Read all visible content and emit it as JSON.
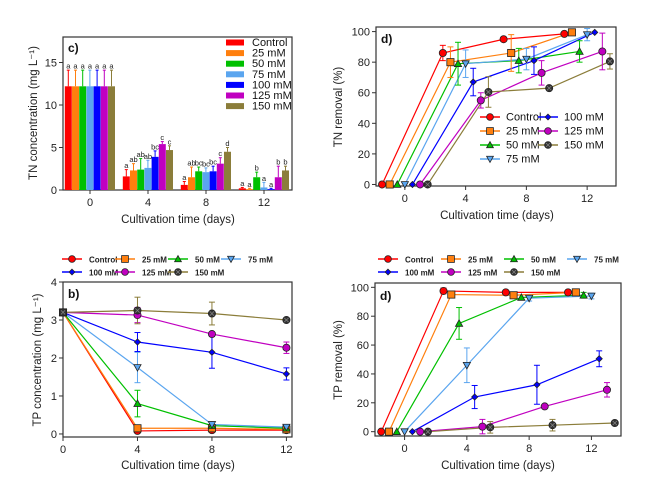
{
  "series_names": [
    "Control",
    "25 mM",
    "50 mM",
    "75 mM",
    "100 mM",
    "125 mM",
    "150 mM"
  ],
  "colors": [
    "#ff0000",
    "#ff7f0e",
    "#00c000",
    "#5aa5ef",
    "#0000ff",
    "#c000c0",
    "#8b7d3a"
  ],
  "markers": [
    "circle",
    "square",
    "triangle-up",
    "triangle-down",
    "diamond",
    "circle",
    "circle-cross"
  ],
  "chart_data": [
    {
      "id": "tn-concentration",
      "type": "bar",
      "panel_label": "c)",
      "title": "",
      "xlabel": "Cultivation time (days)",
      "ylabel": "TN concentration (mg L⁻¹)",
      "ylim": [
        0,
        18
      ],
      "yticks": [
        0,
        5,
        10,
        15
      ],
      "categories": [
        "0",
        "4",
        "8",
        "12"
      ],
      "legend": "top-right",
      "series": [
        {
          "name": "Control",
          "values": [
            12.2,
            1.6,
            0.6,
            0.2
          ],
          "errors": [
            1.9,
            0.8,
            0.4,
            0.1
          ],
          "labels": [
            "a",
            "a",
            "a",
            "a"
          ]
        },
        {
          "name": "25 mM",
          "values": [
            12.2,
            2.3,
            1.5,
            0.1
          ],
          "errors": [
            1.9,
            0.8,
            1.2,
            0.1
          ],
          "labels": [
            "a",
            "ab",
            "ab",
            "a"
          ]
        },
        {
          "name": "50 mM",
          "values": [
            12.2,
            2.4,
            2.2,
            1.5
          ],
          "errors": [
            1.9,
            1.3,
            0.5,
            0.6
          ],
          "labels": [
            "a",
            "ab",
            "bc",
            "b"
          ]
        },
        {
          "name": "75 mM",
          "values": [
            12.2,
            2.6,
            2.1,
            0.3
          ],
          "errors": [
            1.9,
            0.9,
            0.5,
            0.6
          ],
          "labels": [
            "a",
            "ab",
            "bc",
            "a"
          ]
        },
        {
          "name": "100 mM",
          "values": [
            12.2,
            3.9,
            2.2,
            0.1
          ],
          "errors": [
            1.9,
            0.7,
            0.6,
            0.1
          ],
          "labels": [
            "a",
            "bc",
            "bc",
            "a"
          ]
        },
        {
          "name": "125 mM",
          "values": [
            12.2,
            5.4,
            3.1,
            1.5
          ],
          "errors": [
            1.9,
            0.3,
            0.7,
            1.3
          ],
          "labels": [
            "a",
            "c",
            "c",
            "b"
          ]
        },
        {
          "name": "150 mM",
          "values": [
            12.2,
            4.7,
            4.5,
            2.3
          ],
          "errors": [
            1.9,
            0.5,
            0.5,
            0.5
          ],
          "labels": [
            "a",
            "c",
            "d",
            "b"
          ]
        }
      ]
    },
    {
      "id": "tn-removal",
      "type": "line",
      "panel_label": "d)",
      "title": "",
      "xlabel": "Cultivation time (days)",
      "ylabel": "TN removal (%)",
      "xlim": [
        -1.9,
        13.9
      ],
      "ylim": [
        -1,
        103
      ],
      "xticks": [
        0,
        4,
        8,
        12
      ],
      "yticks": [
        0,
        20,
        40,
        60,
        80,
        100
      ],
      "legend": "bottom-right",
      "series": [
        {
          "name": "Control",
          "x": [
            -1.5,
            2.5,
            6.5,
            10.5
          ],
          "y": [
            0,
            86,
            95,
            98.5
          ],
          "err": [
            0,
            5,
            0,
            0
          ]
        },
        {
          "name": "25 mM",
          "x": [
            -1.0,
            3.0,
            7.0,
            11.0
          ],
          "y": [
            0,
            80,
            86,
            99.5
          ],
          "err": [
            0,
            10,
            12,
            0
          ]
        },
        {
          "name": "50 mM",
          "x": [
            -0.5,
            3.5,
            7.5,
            11.5
          ],
          "y": [
            0,
            79,
            81,
            87
          ],
          "err": [
            0,
            14,
            8,
            7
          ]
        },
        {
          "name": "75 mM",
          "x": [
            0.0,
            4.0,
            8.0,
            12.0
          ],
          "y": [
            0,
            79,
            82,
            98
          ],
          "err": [
            0,
            9,
            7,
            4
          ]
        },
        {
          "name": "100 mM",
          "x": [
            0.5,
            4.5,
            8.5,
            12.5
          ],
          "y": [
            0,
            67,
            81,
            99.5
          ],
          "err": [
            0,
            9,
            9,
            0
          ]
        },
        {
          "name": "125 mM",
          "x": [
            1.0,
            5.0,
            9.0,
            13.0
          ],
          "y": [
            0,
            55,
            73,
            87
          ],
          "err": [
            0,
            5,
            8,
            12
          ]
        },
        {
          "name": "150 mM",
          "x": [
            1.5,
            5.5,
            9.5,
            13.5
          ],
          "y": [
            0,
            60.5,
            63,
            80.5
          ],
          "err": [
            0,
            10,
            0,
            5
          ]
        }
      ]
    },
    {
      "id": "tp-concentration",
      "type": "line",
      "panel_label": "b)",
      "title": "",
      "xlabel": "Cultivation time (days)",
      "ylabel": "TP concentration (mg L⁻¹)",
      "xlim": [
        0,
        12.3
      ],
      "ylim": [
        -0.08,
        4
      ],
      "xticks": [
        0,
        4,
        8,
        12
      ],
      "yticks": [
        0,
        1,
        2,
        3,
        4
      ],
      "legend": "top (outside)",
      "series": [
        {
          "name": "Control",
          "x": [
            0,
            4,
            8,
            12
          ],
          "y": [
            3.2,
            0.08,
            0.1,
            0.1
          ],
          "err": [
            0,
            0,
            0,
            0
          ]
        },
        {
          "name": "25 mM",
          "x": [
            0,
            4,
            8,
            12
          ],
          "y": [
            3.2,
            0.15,
            0.15,
            0.12
          ],
          "err": [
            0,
            0,
            0,
            0
          ]
        },
        {
          "name": "50 mM",
          "x": [
            0,
            4,
            8,
            12
          ],
          "y": [
            3.2,
            0.8,
            0.22,
            0.15
          ],
          "err": [
            0,
            0.35,
            0,
            0
          ]
        },
        {
          "name": "75 mM",
          "x": [
            0,
            4,
            8,
            12
          ],
          "y": [
            3.2,
            1.75,
            0.25,
            0.18
          ],
          "err": [
            0,
            0.4,
            0,
            0.05
          ]
        },
        {
          "name": "100 mM",
          "x": [
            0,
            4,
            8,
            12
          ],
          "y": [
            3.2,
            2.42,
            2.15,
            1.58
          ],
          "err": [
            0,
            0.25,
            0.42,
            0.16
          ]
        },
        {
          "name": "125 mM",
          "x": [
            0,
            4,
            8,
            12
          ],
          "y": [
            3.2,
            3.13,
            2.63,
            2.27
          ],
          "err": [
            0,
            0.2,
            0,
            0.15
          ]
        },
        {
          "name": "150 mM",
          "x": [
            0,
            4,
            8,
            12
          ],
          "y": [
            3.2,
            3.25,
            3.17,
            3.0
          ],
          "err": [
            0,
            0.35,
            0.3,
            0
          ]
        }
      ]
    },
    {
      "id": "tp-removal",
      "type": "line",
      "panel_label": "d)",
      "title": "",
      "xlabel": "Cultivation time (days)",
      "ylabel": "TP removal (%)",
      "xlim": [
        -1.9,
        13.9
      ],
      "ylim": [
        -3,
        103
      ],
      "xticks": [
        0,
        4,
        8,
        12
      ],
      "yticks": [
        0,
        20,
        40,
        60,
        80,
        100
      ],
      "legend": "top (outside)",
      "series": [
        {
          "name": "Control",
          "x": [
            -1.5,
            2.5,
            6.5,
            10.5
          ],
          "y": [
            0,
            97.5,
            96.5,
            96.5
          ],
          "err": [
            0,
            2,
            0,
            0
          ]
        },
        {
          "name": "25 mM",
          "x": [
            -1.0,
            3.0,
            7.0,
            11.0
          ],
          "y": [
            0,
            95,
            94.5,
            96.5
          ],
          "err": [
            0,
            0,
            0,
            0
          ]
        },
        {
          "name": "50 mM",
          "x": [
            -0.5,
            3.5,
            7.5,
            11.5
          ],
          "y": [
            0,
            75,
            93,
            94.5
          ],
          "err": [
            0,
            11,
            0,
            2
          ]
        },
        {
          "name": "75 mM",
          "x": [
            0.0,
            4.0,
            8.0,
            12.0
          ],
          "y": [
            0,
            46,
            92.5,
            94
          ],
          "err": [
            0,
            12,
            2,
            2
          ]
        },
        {
          "name": "100 mM",
          "x": [
            0.5,
            4.5,
            8.5,
            12.5
          ],
          "y": [
            0,
            24,
            32.5,
            50.5
          ],
          "err": [
            0,
            8,
            13.5,
            5.5
          ]
        },
        {
          "name": "125 mM",
          "x": [
            1.0,
            5.0,
            9.0,
            13.0
          ],
          "y": [
            0,
            3.5,
            17.5,
            29
          ],
          "err": [
            0,
            5,
            0,
            5
          ]
        },
        {
          "name": "150 mM",
          "x": [
            1.5,
            5.5,
            9.5,
            13.5
          ],
          "y": [
            0,
            3,
            4.5,
            6
          ],
          "err": [
            0,
            4,
            4,
            0
          ]
        }
      ]
    }
  ]
}
